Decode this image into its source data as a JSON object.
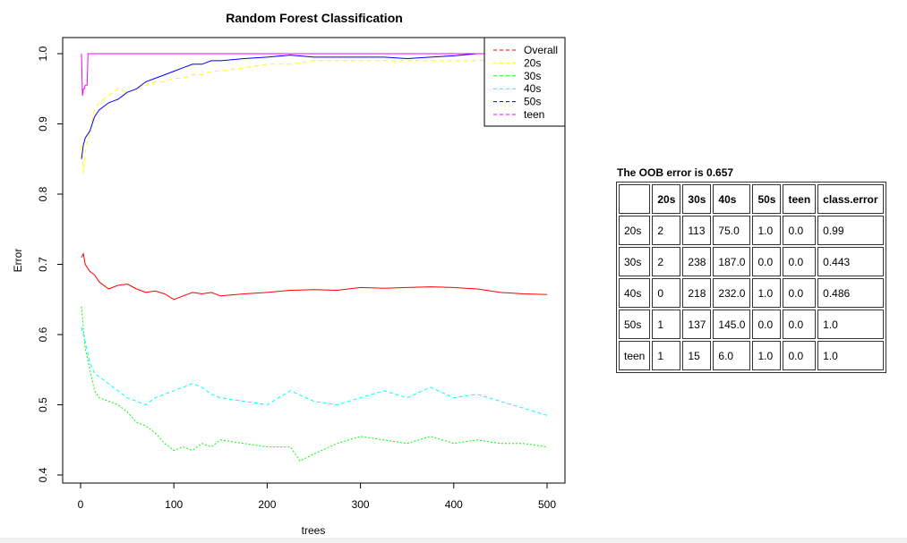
{
  "chart_data": {
    "type": "line",
    "title": "Random Forest Classification",
    "xlabel": "trees",
    "ylabel": "Error",
    "xlim": [
      0,
      500
    ],
    "ylim": [
      0.4,
      1.0
    ],
    "x_ticks": [
      "0",
      "100",
      "200",
      "300",
      "400",
      "500"
    ],
    "y_ticks": [
      "0.4",
      "0.5",
      "0.6",
      "0.7",
      "0.8",
      "0.9",
      "1.0"
    ],
    "grid": false,
    "legend_position": "top-right",
    "series": [
      {
        "name": "Overall",
        "color": "#ff0000",
        "dash": "solid",
        "x": [
          1,
          3,
          5,
          10,
          15,
          20,
          30,
          40,
          50,
          60,
          70,
          80,
          90,
          100,
          110,
          120,
          130,
          140,
          150,
          175,
          200,
          225,
          250,
          275,
          300,
          325,
          350,
          375,
          400,
          425,
          450,
          475,
          500
        ],
        "y": [
          0.71,
          0.715,
          0.7,
          0.69,
          0.685,
          0.675,
          0.665,
          0.67,
          0.672,
          0.665,
          0.66,
          0.662,
          0.658,
          0.65,
          0.655,
          0.66,
          0.658,
          0.66,
          0.655,
          0.658,
          0.66,
          0.663,
          0.664,
          0.663,
          0.667,
          0.666,
          0.667,
          0.668,
          0.667,
          0.665,
          0.66,
          0.658,
          0.657
        ]
      },
      {
        "name": "20s",
        "color": "#ffff00",
        "dash": "5,4",
        "x": [
          1,
          3,
          5,
          10,
          15,
          20,
          30,
          40,
          50,
          60,
          70,
          80,
          90,
          100,
          110,
          120,
          130,
          140,
          150,
          175,
          200,
          225,
          250,
          275,
          300,
          325,
          350,
          375,
          400,
          425,
          450,
          475,
          500
        ],
        "y": [
          0.87,
          0.83,
          0.86,
          0.89,
          0.92,
          0.93,
          0.94,
          0.95,
          0.945,
          0.95,
          0.955,
          0.96,
          0.96,
          0.965,
          0.965,
          0.97,
          0.97,
          0.975,
          0.975,
          0.98,
          0.985,
          0.985,
          0.99,
          0.99,
          0.99,
          0.99,
          0.99,
          0.99,
          0.99,
          0.99,
          0.993,
          0.995,
          0.99
        ]
      },
      {
        "name": "30s",
        "color": "#00ff00",
        "dash": "2,2",
        "x": [
          1,
          3,
          5,
          10,
          15,
          20,
          30,
          40,
          50,
          60,
          70,
          80,
          90,
          100,
          110,
          120,
          130,
          140,
          150,
          175,
          200,
          225,
          235,
          250,
          275,
          300,
          325,
          350,
          375,
          400,
          425,
          450,
          475,
          500
        ],
        "y": [
          0.64,
          0.61,
          0.58,
          0.55,
          0.52,
          0.51,
          0.505,
          0.5,
          0.49,
          0.475,
          0.47,
          0.46,
          0.445,
          0.435,
          0.44,
          0.435,
          0.445,
          0.44,
          0.45,
          0.445,
          0.44,
          0.44,
          0.42,
          0.43,
          0.445,
          0.455,
          0.45,
          0.445,
          0.455,
          0.445,
          0.45,
          0.445,
          0.445,
          0.44
        ]
      },
      {
        "name": "40s",
        "color": "#00ffff",
        "dash": "4,3",
        "x": [
          1,
          3,
          5,
          10,
          15,
          20,
          30,
          40,
          50,
          60,
          70,
          80,
          90,
          100,
          110,
          120,
          130,
          140,
          150,
          175,
          200,
          225,
          250,
          275,
          300,
          325,
          350,
          375,
          400,
          425,
          450,
          475,
          500
        ],
        "y": [
          0.61,
          0.6,
          0.59,
          0.56,
          0.545,
          0.54,
          0.53,
          0.52,
          0.51,
          0.505,
          0.5,
          0.51,
          0.515,
          0.52,
          0.525,
          0.53,
          0.525,
          0.515,
          0.51,
          0.505,
          0.5,
          0.52,
          0.505,
          0.5,
          0.51,
          0.52,
          0.51,
          0.525,
          0.51,
          0.515,
          0.505,
          0.495,
          0.485
        ]
      },
      {
        "name": "50s",
        "color": "#0000ff",
        "dash": "solid",
        "x": [
          1,
          3,
          5,
          10,
          15,
          20,
          30,
          40,
          50,
          60,
          70,
          80,
          90,
          100,
          110,
          120,
          130,
          140,
          150,
          175,
          200,
          225,
          250,
          275,
          300,
          325,
          350,
          375,
          400,
          425,
          450,
          475,
          500
        ],
        "y": [
          0.85,
          0.87,
          0.88,
          0.89,
          0.91,
          0.92,
          0.93,
          0.935,
          0.945,
          0.95,
          0.96,
          0.965,
          0.97,
          0.975,
          0.98,
          0.985,
          0.985,
          0.99,
          0.99,
          0.993,
          0.995,
          0.998,
          0.995,
          0.995,
          0.995,
          0.995,
          0.993,
          0.995,
          0.997,
          1.0,
          1.0,
          1.0,
          1.0
        ]
      },
      {
        "name": "teen",
        "color": "#ff00ff",
        "dash": "solid",
        "x": [
          1,
          2,
          3,
          4,
          5,
          6,
          7,
          8,
          10,
          50,
          100,
          200,
          300,
          400,
          500
        ],
        "y": [
          1.0,
          0.94,
          0.95,
          0.95,
          0.955,
          0.955,
          0.955,
          1.0,
          1.0,
          1.0,
          1.0,
          1.0,
          1.0,
          1.0,
          1.0
        ]
      }
    ]
  },
  "oob": {
    "title": "The OOB error is 0.657",
    "headers": [
      "",
      "20s",
      "30s",
      "40s",
      "50s",
      "teen",
      "class.error"
    ],
    "rows": [
      [
        "20s",
        "2",
        "113",
        "75.0",
        "1.0",
        "0.0",
        "0.99"
      ],
      [
        "30s",
        "2",
        "238",
        "187.0",
        "0.0",
        "0.0",
        "0.443"
      ],
      [
        "40s",
        "0",
        "218",
        "232.0",
        "1.0",
        "0.0",
        "0.486"
      ],
      [
        "50s",
        "1",
        "137",
        "145.0",
        "0.0",
        "0.0",
        "1.0"
      ],
      [
        "teen",
        "1",
        "15",
        "6.0",
        "1.0",
        "0.0",
        "1.0"
      ]
    ]
  }
}
